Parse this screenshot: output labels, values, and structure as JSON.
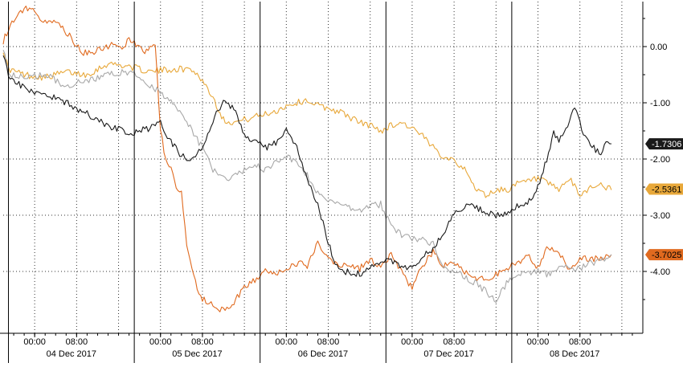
{
  "chart_data": {
    "type": "line",
    "title": "",
    "xlabel": "",
    "ylabel": "",
    "ylim": [
      -5.1,
      0.8
    ],
    "y_ticks": [
      "0.00",
      "-1.00",
      "-2.00",
      "-3.00",
      "-4.00"
    ],
    "y_tick_values": [
      0,
      -1,
      -2,
      -3,
      -4
    ],
    "x_range_hours": [
      -4,
      118
    ],
    "time_tick_labels": [
      {
        "hour": 2,
        "label": "00:00"
      },
      {
        "hour": 10,
        "label": "08:00"
      },
      {
        "hour": 26,
        "label": "00:00"
      },
      {
        "hour": 34,
        "label": "08:00"
      },
      {
        "hour": 50,
        "label": "00:00"
      },
      {
        "hour": 58,
        "label": "08:00"
      },
      {
        "hour": 74,
        "label": "00:00"
      },
      {
        "hour": 82,
        "label": "08:00"
      },
      {
        "hour": 98,
        "label": "00:00"
      },
      {
        "hour": 106,
        "label": "08:00"
      }
    ],
    "day_labels": [
      {
        "hour": 9,
        "label": "04 Dec 2017"
      },
      {
        "hour": 33,
        "label": "05 Dec 2017"
      },
      {
        "hour": 57,
        "label": "06 Dec 2017"
      },
      {
        "hour": 81,
        "label": "07 Dec 2017"
      },
      {
        "hour": 105,
        "label": "08 Dec 2017"
      }
    ],
    "day_dividers_hours": [
      -3,
      21,
      45,
      69,
      93
    ],
    "vertical_grid_hours": [
      2,
      10,
      18,
      26,
      34,
      42,
      50,
      58,
      66,
      74,
      82,
      90,
      98,
      106,
      114
    ],
    "grid": true,
    "legend": "none",
    "series": [
      {
        "color": "#e8a83a",
        "last_label": "-2.5361",
        "last_value": -2.5361,
        "x": [
          -4,
          -3,
          0,
          4,
          8,
          12,
          16,
          20,
          24,
          28,
          32,
          34,
          36,
          38,
          40,
          44,
          48,
          50,
          52,
          54,
          56,
          58,
          60,
          62,
          64,
          66,
          68,
          70,
          72,
          74,
          76,
          78,
          80,
          82,
          84,
          86,
          88,
          90,
          92,
          94,
          96,
          98,
          100,
          102,
          104,
          106,
          108,
          110,
          112
        ],
        "y": [
          -0.05,
          -0.4,
          -0.5,
          -0.55,
          -0.45,
          -0.5,
          -0.3,
          -0.35,
          -0.45,
          -0.4,
          -0.4,
          -0.6,
          -0.9,
          -1.3,
          -1.35,
          -1.25,
          -1.15,
          -1.05,
          -1.0,
          -0.95,
          -1.05,
          -1.1,
          -1.15,
          -1.25,
          -1.35,
          -1.4,
          -1.5,
          -1.4,
          -1.35,
          -1.45,
          -1.6,
          -1.8,
          -1.95,
          -2.0,
          -2.2,
          -2.5,
          -2.65,
          -2.55,
          -2.55,
          -2.45,
          -2.4,
          -2.35,
          -2.45,
          -2.55,
          -2.35,
          -2.65,
          -2.5,
          -2.45,
          -2.55
        ]
      },
      {
        "color": "#e06a1f",
        "last_label": "-3.7025",
        "last_value": -3.7025,
        "x": [
          -4,
          -3,
          -1,
          1,
          3,
          5,
          7,
          9,
          11,
          13,
          15,
          17,
          19,
          20,
          21,
          23,
          25,
          26,
          27,
          28,
          29,
          30,
          31,
          32,
          33,
          34,
          36,
          38,
          40,
          42,
          44,
          46,
          48,
          50,
          52,
          54,
          56,
          58,
          60,
          62,
          64,
          66,
          68,
          70,
          72,
          74,
          76,
          78,
          80,
          82,
          84,
          86,
          88,
          90,
          92,
          94,
          96,
          98,
          100,
          102,
          104,
          106,
          108,
          110,
          112
        ],
        "y": [
          0.1,
          0.3,
          0.6,
          0.7,
          0.5,
          0.45,
          0.35,
          0.15,
          -0.1,
          -0.1,
          -0.05,
          0.05,
          0.0,
          0.15,
          0.05,
          -0.1,
          0.0,
          -1.5,
          -2.0,
          -2.2,
          -2.5,
          -2.6,
          -3.5,
          -4.0,
          -4.3,
          -4.5,
          -4.6,
          -4.7,
          -4.55,
          -4.3,
          -4.15,
          -4.0,
          -4.05,
          -3.95,
          -3.85,
          -3.9,
          -3.5,
          -3.75,
          -3.9,
          -3.85,
          -3.95,
          -3.8,
          -3.9,
          -3.7,
          -4.0,
          -4.3,
          -3.9,
          -3.65,
          -3.9,
          -3.85,
          -4.0,
          -4.1,
          -4.15,
          -4.05,
          -3.95,
          -3.85,
          -3.7,
          -3.95,
          -3.55,
          -3.65,
          -3.95,
          -3.75,
          -3.8,
          -3.75,
          -3.7
        ]
      },
      {
        "color": "#a8a8a8",
        "last_label": "",
        "x": [
          -4,
          -3,
          0,
          4,
          8,
          12,
          16,
          20,
          24,
          26,
          28,
          30,
          32,
          34,
          36,
          38,
          40,
          42,
          44,
          46,
          48,
          50,
          52,
          54,
          56,
          58,
          60,
          62,
          64,
          66,
          68,
          70,
          72,
          74,
          76,
          78,
          80,
          82,
          84,
          86,
          88,
          90,
          92,
          94,
          96,
          98,
          100,
          102,
          104,
          106,
          108,
          110,
          112
        ],
        "y": [
          0.0,
          -0.5,
          -0.55,
          -0.5,
          -0.7,
          -0.6,
          -0.5,
          -0.45,
          -0.7,
          -0.8,
          -1.0,
          -1.2,
          -1.5,
          -1.8,
          -2.2,
          -2.35,
          -2.3,
          -2.2,
          -2.1,
          -2.2,
          -2.05,
          -1.95,
          -2.1,
          -2.3,
          -2.6,
          -2.75,
          -2.8,
          -2.85,
          -2.9,
          -2.85,
          -2.8,
          -3.2,
          -3.35,
          -3.4,
          -3.45,
          -3.5,
          -3.9,
          -4.0,
          -4.1,
          -4.2,
          -4.35,
          -4.55,
          -4.2,
          -4.05,
          -4.05,
          -4.0,
          -4.05,
          -3.9,
          -3.95,
          -3.95,
          -3.85,
          -3.8,
          -3.7
        ]
      },
      {
        "color": "#1a1a1a",
        "last_label": "-1.7306",
        "last_value": -1.7306,
        "x": [
          -4,
          -3,
          0,
          4,
          8,
          12,
          16,
          20,
          24,
          26,
          28,
          30,
          32,
          34,
          36,
          38,
          40,
          42,
          44,
          46,
          48,
          50,
          52,
          54,
          56,
          58,
          60,
          62,
          64,
          66,
          68,
          70,
          72,
          74,
          76,
          78,
          80,
          82,
          84,
          86,
          88,
          90,
          92,
          94,
          96,
          98,
          100,
          101,
          102,
          104,
          105,
          106,
          107,
          108,
          109,
          110,
          111,
          112
        ],
        "y": [
          -0.1,
          -0.5,
          -0.75,
          -0.85,
          -1.0,
          -1.2,
          -1.4,
          -1.55,
          -1.45,
          -1.35,
          -1.7,
          -1.95,
          -2.0,
          -1.8,
          -1.3,
          -1.0,
          -1.1,
          -1.6,
          -1.7,
          -1.8,
          -1.7,
          -1.5,
          -1.8,
          -2.4,
          -2.8,
          -3.5,
          -4.0,
          -4.0,
          -4.05,
          -3.95,
          -3.85,
          -3.8,
          -3.9,
          -3.95,
          -3.75,
          -3.6,
          -3.3,
          -2.95,
          -2.85,
          -2.85,
          -2.95,
          -3.0,
          -2.95,
          -2.85,
          -2.8,
          -2.5,
          -1.9,
          -1.5,
          -1.7,
          -1.35,
          -1.05,
          -1.35,
          -1.6,
          -1.7,
          -1.85,
          -1.9,
          -1.75,
          -1.73
        ]
      }
    ]
  }
}
